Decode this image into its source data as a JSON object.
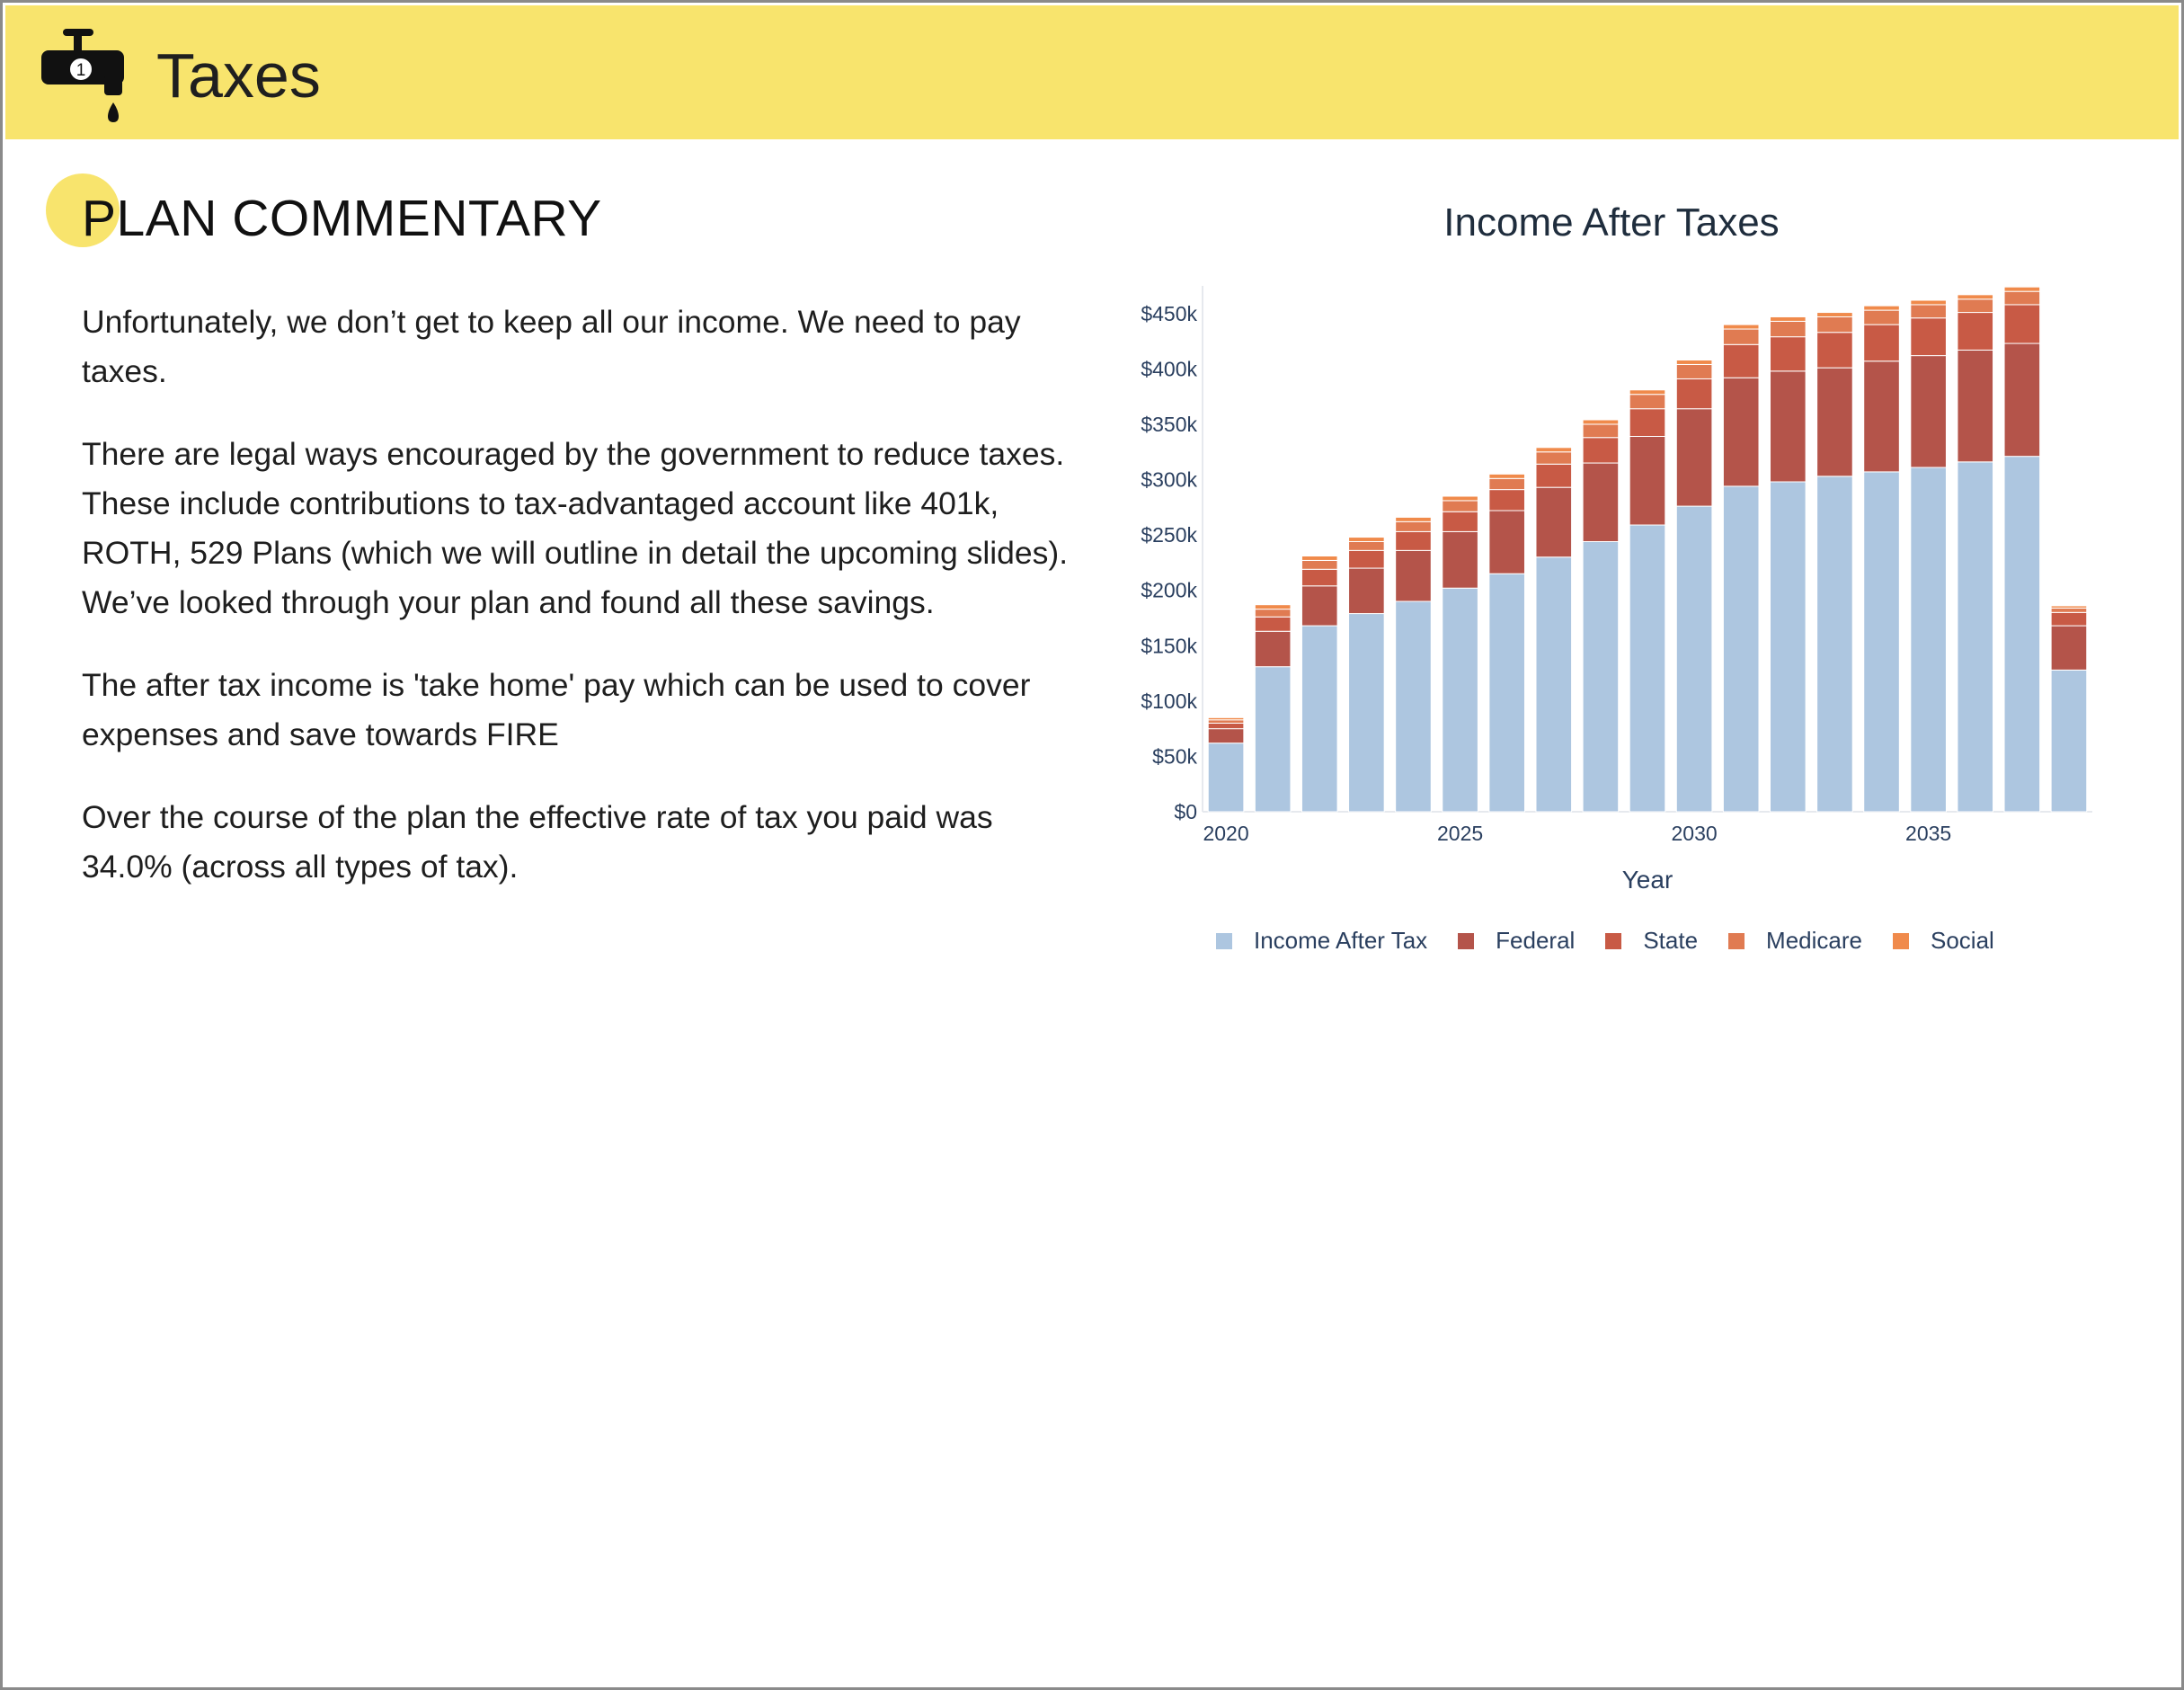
{
  "header": {
    "title": "Taxes",
    "icon": "faucet-icon",
    "icon_badge": "1",
    "accent_color": "#f8e46d"
  },
  "section": {
    "title": "PLAN COMMENTARY"
  },
  "commentary": {
    "paragraphs": [
      "Unfortunately, we don’t get to keep all our income. We need to pay taxes.",
      "There are legal ways encouraged by the government to reduce taxes. These include contributions to tax-advantaged account like 401k, ROTH, 529 Plans (which we will outline in detail the upcoming slides). We’ve looked through your plan and found all these savings.",
      "The after tax income is 'take home' pay which can be used to cover expenses and save towards FIRE",
      "Over the course of the plan the effective rate of tax you paid was 34.0% (across all types of tax)."
    ]
  },
  "chart_data": {
    "type": "bar",
    "stacked": true,
    "title": "Income After Taxes",
    "xlabel": "Year",
    "ylabel": "",
    "x": [
      2020,
      2021,
      2022,
      2023,
      2024,
      2025,
      2026,
      2027,
      2028,
      2029,
      2030,
      2031,
      2032,
      2033,
      2034,
      2035,
      2036,
      2037,
      2038
    ],
    "x_ticks": [
      "2020",
      "2025",
      "2030",
      "2035"
    ],
    "ylim": [
      0,
      475000
    ],
    "y_ticks": [
      "$0",
      "$50k",
      "$100k",
      "$150k",
      "$200k",
      "$250k",
      "$300k",
      "$350k",
      "$400k",
      "$450k"
    ],
    "grid": false,
    "legend_position": "bottom",
    "series": [
      {
        "name": "Income After Tax",
        "color": "#adc6e0",
        "values": [
          62000,
          131000,
          168000,
          179000,
          190000,
          202000,
          215000,
          230000,
          244000,
          259000,
          276000,
          294000,
          298000,
          303000,
          307000,
          311000,
          316000,
          321000,
          128000
        ]
      },
      {
        "name": "Federal",
        "color": "#b4544a",
        "values": [
          13000,
          32000,
          36000,
          41000,
          46000,
          51000,
          57000,
          63000,
          71000,
          80000,
          88000,
          98000,
          100000,
          98000,
          100000,
          101000,
          101000,
          102000,
          40000
        ]
      },
      {
        "name": "State",
        "color": "#c85a45",
        "values": [
          5000,
          13000,
          15000,
          16000,
          17000,
          18000,
          19000,
          21000,
          23000,
          25000,
          27000,
          30000,
          31000,
          32000,
          33000,
          34000,
          34000,
          35000,
          12000
        ]
      },
      {
        "name": "Medicare",
        "color": "#e07b52",
        "values": [
          3000,
          7000,
          8000,
          8000,
          9000,
          10000,
          10000,
          11000,
          12000,
          13000,
          13000,
          14000,
          14000,
          14000,
          13000,
          12000,
          12000,
          12000,
          4000
        ]
      },
      {
        "name": "Social",
        "color": "#f08a4b",
        "values": [
          2000,
          4000,
          4000,
          4000,
          4000,
          4000,
          4000,
          4000,
          4000,
          4000,
          4000,
          4000,
          4000,
          4000,
          4000,
          4000,
          4000,
          4000,
          2000
        ]
      }
    ]
  }
}
